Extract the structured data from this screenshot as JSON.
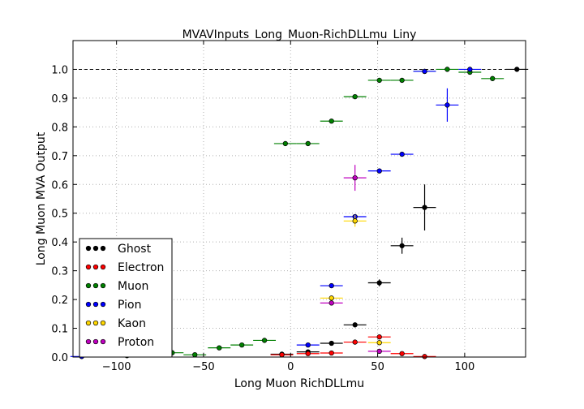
{
  "chart_data": {
    "type": "scatter",
    "title": "MVAVInputs_Long_Muon-RichDLLmu_Liny",
    "xlabel": "Long Muon RichDLLmu",
    "ylabel": "Long Muon MVA Output",
    "xlim": [
      -125,
      135
    ],
    "ylim": [
      0.0,
      1.1
    ],
    "xticks": [
      -100,
      -50,
      0,
      50,
      100
    ],
    "yticks": [
      0.0,
      0.1,
      0.2,
      0.3,
      0.4,
      0.5,
      0.6,
      0.7,
      0.8,
      0.9,
      1.0
    ],
    "xtick_labels": [
      "−100",
      "−50",
      "0",
      "50",
      "100"
    ],
    "ytick_labels": [
      "0.0",
      "0.1",
      "0.2",
      "0.3",
      "0.4",
      "0.5",
      "0.6",
      "0.7",
      "0.8",
      "0.9",
      "1.0"
    ],
    "grid": true,
    "reference_line": 1.0,
    "legend_position": "lower-left",
    "series": [
      {
        "name": "Ghost",
        "color": "#000000",
        "points": [
          {
            "x": -5,
            "y": 0.01,
            "xerr": 6.5,
            "yerr": 0.003
          },
          {
            "x": 10,
            "y": 0.018,
            "xerr": 6.5,
            "yerr": 0.004
          },
          {
            "x": 23.5,
            "y": 0.048,
            "xerr": 6.5,
            "yerr": 0.005
          },
          {
            "x": 37,
            "y": 0.112,
            "xerr": 6.5,
            "yerr": 0.006
          },
          {
            "x": 51,
            "y": 0.258,
            "xerr": 6.5,
            "yerr": 0.012
          },
          {
            "x": 64,
            "y": 0.387,
            "xerr": 6.5,
            "yerr": 0.028
          },
          {
            "x": 77,
            "y": 0.52,
            "xerr": 6.5,
            "yerr": 0.08
          },
          {
            "x": 130,
            "y": 1.0,
            "xerr": 6.5,
            "yerr": 0.002
          }
        ]
      },
      {
        "name": "Electron",
        "color": "#ff0000",
        "points": [
          {
            "x": -5,
            "y": 0.008,
            "xerr": 6.5,
            "yerr": 0.003
          },
          {
            "x": 10,
            "y": 0.012,
            "xerr": 6.5,
            "yerr": 0.003
          },
          {
            "x": 23.5,
            "y": 0.014,
            "xerr": 6.5,
            "yerr": 0.003
          },
          {
            "x": 37,
            "y": 0.052,
            "xerr": 6.5,
            "yerr": 0.004
          },
          {
            "x": 51,
            "y": 0.07,
            "xerr": 6.5,
            "yerr": 0.005
          },
          {
            "x": 64,
            "y": 0.012,
            "xerr": 6.5,
            "yerr": 0.003
          },
          {
            "x": 77,
            "y": 0.002,
            "xerr": 6.5,
            "yerr": 0.002
          }
        ]
      },
      {
        "name": "Muon",
        "color": "#008000",
        "points": [
          {
            "x": -107,
            "y": 0.01,
            "xerr": 6.5,
            "yerr": 0.003
          },
          {
            "x": -94,
            "y": 0.005,
            "xerr": 6.5,
            "yerr": 0.002
          },
          {
            "x": -68,
            "y": 0.015,
            "xerr": 6.5,
            "yerr": 0.003
          },
          {
            "x": -55,
            "y": 0.008,
            "xerr": 6.5,
            "yerr": 0.002
          },
          {
            "x": -41,
            "y": 0.032,
            "xerr": 6.5,
            "yerr": 0.004
          },
          {
            "x": -28,
            "y": 0.042,
            "xerr": 6.5,
            "yerr": 0.004
          },
          {
            "x": -15,
            "y": 0.058,
            "xerr": 6.5,
            "yerr": 0.004
          },
          {
            "x": -3,
            "y": 0.742,
            "xerr": 6.5,
            "yerr": 0.004
          },
          {
            "x": 10,
            "y": 0.742,
            "xerr": 6.5,
            "yerr": 0.004
          },
          {
            "x": 23.5,
            "y": 0.82,
            "xerr": 6.5,
            "yerr": 0.004
          },
          {
            "x": 37,
            "y": 0.905,
            "xerr": 6.5,
            "yerr": 0.004
          },
          {
            "x": 51,
            "y": 0.962,
            "xerr": 6.5,
            "yerr": 0.004
          },
          {
            "x": 64,
            "y": 0.962,
            "xerr": 6.5,
            "yerr": 0.004
          },
          {
            "x": 77,
            "y": 0.993,
            "xerr": 6.5,
            "yerr": 0.003
          },
          {
            "x": 90,
            "y": 1.0,
            "xerr": 6.5,
            "yerr": 0.002
          },
          {
            "x": 103,
            "y": 0.99,
            "xerr": 6.5,
            "yerr": 0.004
          },
          {
            "x": 116,
            "y": 0.968,
            "xerr": 6.5,
            "yerr": 0.008
          }
        ]
      },
      {
        "name": "Pion",
        "color": "#0000ff",
        "points": [
          {
            "x": -120,
            "y": 0.002,
            "xerr": 6.5,
            "yerr": 0.002
          },
          {
            "x": 10,
            "y": 0.042,
            "xerr": 6.5,
            "yerr": 0.004
          },
          {
            "x": 23.5,
            "y": 0.248,
            "xerr": 6.5,
            "yerr": 0.006
          },
          {
            "x": 37,
            "y": 0.488,
            "xerr": 6.5,
            "yerr": 0.008
          },
          {
            "x": 51,
            "y": 0.647,
            "xerr": 6.5,
            "yerr": 0.006
          },
          {
            "x": 64,
            "y": 0.705,
            "xerr": 6.5,
            "yerr": 0.008
          },
          {
            "x": 77,
            "y": 0.993,
            "xerr": 6.5,
            "yerr": 0.003
          },
          {
            "x": 90,
            "y": 0.876,
            "xerr": 6.5,
            "yerr": 0.058
          },
          {
            "x": 103,
            "y": 1.0,
            "xerr": 6.5,
            "yerr": 0.003
          }
        ]
      },
      {
        "name": "Kaon",
        "color": "#ffd700",
        "points": [
          {
            "x": 23.5,
            "y": 0.205,
            "xerr": 6.5,
            "yerr": 0.008
          },
          {
            "x": 37,
            "y": 0.473,
            "xerr": 6.5,
            "yerr": 0.02
          },
          {
            "x": 51,
            "y": 0.05,
            "xerr": 6.5,
            "yerr": 0.005
          }
        ]
      },
      {
        "name": "Proton",
        "color": "#bf00bf",
        "points": [
          {
            "x": 23.5,
            "y": 0.188,
            "xerr": 6.5,
            "yerr": 0.008
          },
          {
            "x": 37,
            "y": 0.623,
            "xerr": 6.5,
            "yerr": 0.045
          },
          {
            "x": 51,
            "y": 0.02,
            "xerr": 6.5,
            "yerr": 0.005
          }
        ]
      }
    ]
  }
}
